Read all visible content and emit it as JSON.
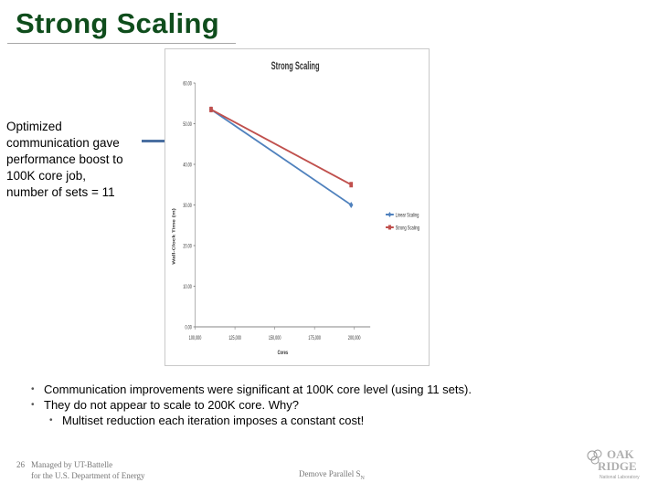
{
  "slide": {
    "title": "Strong Scaling",
    "callout_lines": [
      "Optimized",
      "communication gave",
      "performance boost to",
      "100K core job,",
      "number of sets = 11"
    ],
    "bullets": [
      "Communication improvements were significant at 100K core level (using 11 sets).",
      "They do not appear to scale to 200K core. Why?"
    ],
    "sub_bullets": [
      "Multiset reduction each iteration imposes a constant cost!"
    ],
    "footer": {
      "slide_number": "26",
      "managed_line1": "Managed by UT-Battelle",
      "managed_line2": "for the U.S. Department of Energy",
      "center_text": "Demove Parallel S",
      "center_sub": "N"
    },
    "logo": {
      "line1": "OAK",
      "line2": "RIDGE",
      "line3": "National Laboratory"
    }
  },
  "chart_data": {
    "type": "line",
    "title": "Strong Scaling",
    "xlabel": "Cores",
    "ylabel": "Wall-Clock Time (m)",
    "xlim": [
      100000,
      210000
    ],
    "ylim": [
      0,
      60
    ],
    "x_ticks": [
      100000,
      125000,
      150000,
      175000,
      200000
    ],
    "x_tick_labels": [
      "100,000",
      "125,000",
      "150,000",
      "175,000",
      "200,000"
    ],
    "y_ticks": [
      0,
      10,
      20,
      30,
      40,
      50,
      60
    ],
    "y_tick_labels": [
      "0.00",
      "10.00",
      "20.00",
      "30.00",
      "40.00",
      "50.00",
      "60.00"
    ],
    "grid": false,
    "legend_position": "right",
    "series": [
      {
        "name": "Linear Scaling",
        "color": "#4f81bd",
        "marker": "diamond",
        "x": [
          110000,
          198000
        ],
        "y": [
          53.5,
          30.0
        ]
      },
      {
        "name": "Strong Scaling",
        "color": "#c0504d",
        "marker": "square",
        "x": [
          110000,
          198000
        ],
        "y": [
          53.5,
          35.0
        ]
      }
    ]
  }
}
